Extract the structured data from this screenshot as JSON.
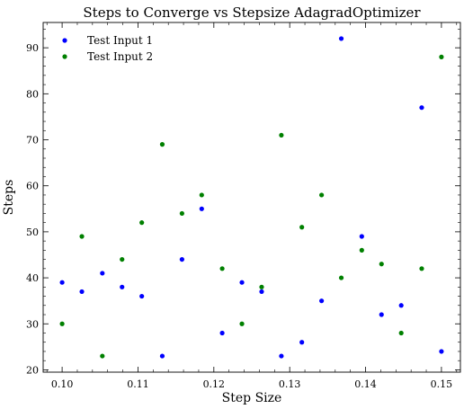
{
  "chart_data": {
    "type": "scatter",
    "title": "Steps to Converge vs Stepsize AdagradOptimizer",
    "xlabel": "Step Size",
    "ylabel": "Steps",
    "xlim": [
      0.0975,
      0.1525
    ],
    "ylim": [
      19.5,
      95.5
    ],
    "xticks": [
      0.1,
      0.11,
      0.12,
      0.13,
      0.14,
      0.15
    ],
    "xtick_labels": [
      "0.10",
      "0.11",
      "0.12",
      "0.13",
      "0.14",
      "0.15"
    ],
    "yticks": [
      20,
      30,
      40,
      50,
      60,
      70,
      80,
      90
    ],
    "ytick_labels": [
      "20",
      "30",
      "40",
      "50",
      "60",
      "70",
      "80",
      "90"
    ],
    "grid": false,
    "legend_position": "top-left",
    "series": [
      {
        "name": "Test Input 1",
        "color": "#0000ff",
        "x": [
          0.1,
          0.1026,
          0.1053,
          0.1079,
          0.1105,
          0.1132,
          0.1158,
          0.1184,
          0.1211,
          0.1237,
          0.1263,
          0.1289,
          0.1316,
          0.1342,
          0.1368,
          0.1395,
          0.1421,
          0.1447,
          0.1474,
          0.15
        ],
        "y": [
          39,
          37,
          41,
          38,
          36,
          23,
          44,
          55,
          28,
          39,
          37,
          23,
          26,
          35,
          92,
          49,
          32,
          34,
          77,
          24
        ]
      },
      {
        "name": "Test Input 2",
        "color": "#008000",
        "x": [
          0.1,
          0.1026,
          0.1053,
          0.1079,
          0.1105,
          0.1132,
          0.1158,
          0.1184,
          0.1211,
          0.1237,
          0.1263,
          0.1289,
          0.1316,
          0.1342,
          0.1368,
          0.1395,
          0.1421,
          0.1447,
          0.1474,
          0.15
        ],
        "y": [
          30,
          49,
          23,
          44,
          52,
          69,
          54,
          58,
          42,
          30,
          38,
          71,
          51,
          58,
          40,
          46,
          43,
          28,
          42,
          88
        ]
      }
    ]
  }
}
